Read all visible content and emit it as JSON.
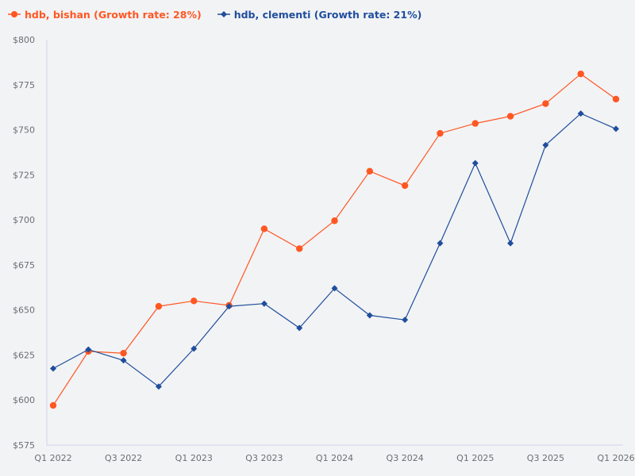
{
  "colors": {
    "background": "#f2f3f5",
    "axis": "#c9d3e6",
    "tick_text": "#6b6e73",
    "series_bishan": "#ff5722",
    "series_clementi": "#1f4e9c"
  },
  "legend": {
    "items": [
      {
        "label": "hdb, bishan (Growth rate: 28%)",
        "marker": "circle",
        "color": "#ff5722"
      },
      {
        "label": "hdb, clementi (Growth rate: 21%)",
        "marker": "diamond",
        "color": "#1f4e9c"
      }
    ]
  },
  "chart_data": {
    "type": "line",
    "title": "",
    "xlabel": "",
    "ylabel": "",
    "x": [
      "Q1 2022",
      "Q2 2022",
      "Q3 2022",
      "Q4 2022",
      "Q1 2023",
      "Q2 2023",
      "Q3 2023",
      "Q4 2023",
      "Q1 2024",
      "Q2 2024",
      "Q3 2024",
      "Q4 2024",
      "Q1 2025",
      "Q2 2025",
      "Q3 2025",
      "Q4 2025",
      "Q1 2026"
    ],
    "x_tick_labels": [
      "Q1 2022",
      "Q3 2022",
      "Q1 2023",
      "Q3 2023",
      "Q1 2024",
      "Q3 2024",
      "Q1 2025",
      "Q3 2025",
      "Q1 2026"
    ],
    "y_tick_labels": [
      "$575",
      "$600",
      "$625",
      "$650",
      "$675",
      "$700",
      "$725",
      "$750",
      "$775",
      "$800"
    ],
    "ylim": [
      575,
      800
    ],
    "y_ticks": [
      575,
      600,
      625,
      650,
      675,
      700,
      725,
      750,
      775,
      800
    ],
    "grid": false,
    "legend_position": "top-left",
    "series": [
      {
        "name": "hdb, bishan (Growth rate: 28%)",
        "marker": "circle",
        "color": "#ff5722",
        "values": [
          597,
          627,
          626,
          652,
          655,
          652.5,
          695,
          684,
          699.5,
          727,
          719,
          748,
          753.5,
          757.5,
          764.5,
          781,
          767
        ]
      },
      {
        "name": "hdb, clementi (Growth rate: 21%)",
        "marker": "diamond",
        "color": "#1f4e9c",
        "values": [
          617.5,
          628,
          622,
          607.5,
          628.5,
          652,
          653.5,
          640,
          662,
          647,
          644.5,
          687,
          731.5,
          687,
          741.5,
          759,
          750.5
        ]
      }
    ]
  }
}
